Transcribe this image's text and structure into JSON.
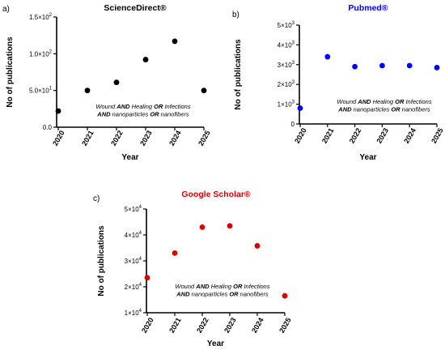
{
  "chart_data": [
    {
      "panel_label": "a)",
      "type": "scatter",
      "title": "ScienceDirect®",
      "title_color": "#000000",
      "point_color": "#000000",
      "xlabel": "Year",
      "ylabel": "No of publications",
      "x": [
        "2020",
        "2021",
        "2022",
        "2023",
        "2024",
        "2025"
      ],
      "y": [
        22,
        50,
        61,
        92,
        117,
        50
      ],
      "ylim": [
        0,
        150
      ],
      "yticks": [
        {
          "value": 0,
          "mantissa": "0.0",
          "exp": ""
        },
        {
          "value": 50,
          "mantissa": "5.0×10",
          "exp": "1"
        },
        {
          "value": 100,
          "mantissa": "1.0×10",
          "exp": "2"
        },
        {
          "value": 150,
          "mantissa": "1.5×10",
          "exp": "2"
        }
      ],
      "annotation": [
        [
          {
            "t": "Wound ",
            "b": false
          },
          {
            "t": "AND",
            "b": true
          },
          {
            "t": " Healing ",
            "b": false
          },
          {
            "t": "OR",
            "b": true
          },
          {
            "t": " Infections",
            "b": false
          }
        ],
        [
          {
            "t": "AND",
            "b": true
          },
          {
            "t": " nanoparticles ",
            "b": false
          },
          {
            "t": "OR",
            "b": true
          },
          {
            "t": " nanofibers",
            "b": false
          }
        ]
      ]
    },
    {
      "panel_label": "b)",
      "type": "scatter",
      "title": "Pubmed®",
      "title_color": "#0000ff",
      "point_color": "#0000ff",
      "xlabel": "Year",
      "ylabel": "No of publications",
      "x": [
        "2020",
        "2021",
        "2022",
        "2023",
        "2024",
        "2025"
      ],
      "y": [
        800,
        3400,
        2900,
        2950,
        2950,
        2850
      ],
      "ylim": [
        0,
        5000
      ],
      "yticks": [
        {
          "value": 0,
          "mantissa": "0",
          "exp": ""
        },
        {
          "value": 1000,
          "mantissa": "1×10",
          "exp": "3"
        },
        {
          "value": 2000,
          "mantissa": "2×10",
          "exp": "3"
        },
        {
          "value": 3000,
          "mantissa": "3×10",
          "exp": "3"
        },
        {
          "value": 4000,
          "mantissa": "4×10",
          "exp": "3"
        },
        {
          "value": 5000,
          "mantissa": "5×10",
          "exp": "3"
        }
      ],
      "annotation": [
        [
          {
            "t": "Wound ",
            "b": false
          },
          {
            "t": "AND",
            "b": true
          },
          {
            "t": " Healing ",
            "b": false
          },
          {
            "t": "OR",
            "b": true
          },
          {
            "t": " Infections",
            "b": false
          }
        ],
        [
          {
            "t": "AND",
            "b": true
          },
          {
            "t": " nanoparticles ",
            "b": false
          },
          {
            "t": "OR",
            "b": true
          },
          {
            "t": " nanofibers",
            "b": false
          }
        ]
      ]
    },
    {
      "panel_label": "c)",
      "type": "scatter",
      "title": "Google Scholar®",
      "title_color": "#e00000",
      "point_color": "#e00000",
      "xlabel": "Year",
      "ylabel": "No of publications",
      "x": [
        "2020",
        "2021",
        "2022",
        "2023",
        "2024",
        "2025"
      ],
      "y": [
        23500,
        33000,
        43000,
        43500,
        35800,
        16500
      ],
      "ylim": [
        10000,
        50000
      ],
      "yticks": [
        {
          "value": 10000,
          "mantissa": "1×10",
          "exp": "4"
        },
        {
          "value": 20000,
          "mantissa": "2×10",
          "exp": "4"
        },
        {
          "value": 30000,
          "mantissa": "3×10",
          "exp": "4"
        },
        {
          "value": 40000,
          "mantissa": "4×10",
          "exp": "4"
        },
        {
          "value": 50000,
          "mantissa": "5×10",
          "exp": "4"
        }
      ],
      "annotation": [
        [
          {
            "t": "Wound ",
            "b": false
          },
          {
            "t": "AND",
            "b": true
          },
          {
            "t": " Healing ",
            "b": false
          },
          {
            "t": "OR",
            "b": true
          },
          {
            "t": " Infections",
            "b": false
          }
        ],
        [
          {
            "t": "AND",
            "b": true
          },
          {
            "t": " nanoparticles ",
            "b": false
          },
          {
            "t": "OR",
            "b": true
          },
          {
            "t": " nanofibers",
            "b": false
          }
        ]
      ]
    }
  ]
}
